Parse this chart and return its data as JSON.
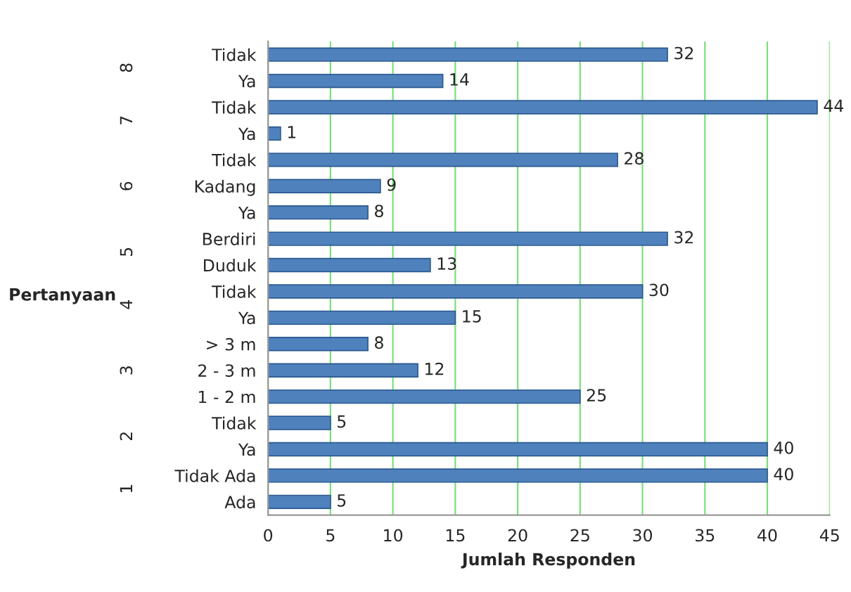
{
  "chart_data": {
    "type": "bar",
    "orientation": "horizontal",
    "xlabel": "Jumlah Responden",
    "ylabel": "Pertanyaan",
    "categories": [
      "Tidak",
      "Ya",
      "Tidak",
      "Ya",
      "Tidak",
      "Kadang",
      "Ya",
      "Berdiri",
      "Duduk",
      "Tidak",
      "Ya",
      "> 3 m",
      "2 - 3 m",
      "1 - 2 m",
      "Tidak",
      "Ya",
      "Tidak Ada",
      "Ada"
    ],
    "values": [
      32,
      14,
      44,
      1,
      28,
      9,
      8,
      32,
      13,
      30,
      15,
      8,
      12,
      25,
      5,
      40,
      40,
      5
    ],
    "color": "#4f81bd",
    "data_labels": true,
    "xlim": [
      0,
      45
    ],
    "xticks": [
      0,
      5,
      10,
      15,
      20,
      25,
      30,
      35,
      40,
      45
    ],
    "grid": "x",
    "annotations": [
      "8",
      "7",
      "6",
      "5",
      "4",
      "3",
      "2",
      "1"
    ]
  }
}
